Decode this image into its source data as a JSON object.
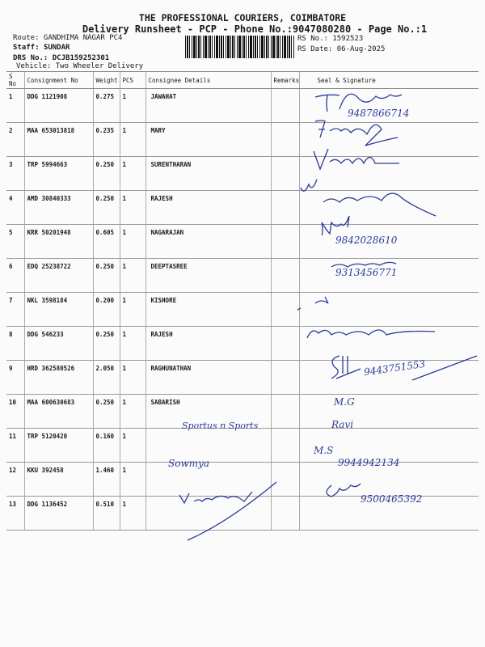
{
  "header": {
    "company": "THE PROFESSIONAL COURIERS, COIMBATORE",
    "subtitle": "Delivery Runsheet - PCP - Phone No.:9047080280 - Page No.:1",
    "route": "Route: GANDHIMA NAGAR PC4",
    "staff": "Staff: SUNDAR",
    "drs": "DRS No.: DCJB159252301",
    "vehicle": "Vehicle: Two Wheeler Delivery",
    "rs_no": "RS No.: 1592523",
    "rs_date": "RS Date: 06-Aug-2025"
  },
  "table": {
    "columns": [
      "S No",
      "Consignment No",
      "Weight",
      "PCS",
      "Consignee Details",
      "Remarks",
      "Seal & Signature"
    ],
    "rows": [
      {
        "sno": "1",
        "cn": "DDG 1121908",
        "wt": "0.275",
        "pcs": "1",
        "name": "JAWAHAT"
      },
      {
        "sno": "2",
        "cn": "MAA 653013818",
        "wt": "0.235",
        "pcs": "1",
        "name": "MARY"
      },
      {
        "sno": "3",
        "cn": "TRP 5994663",
        "wt": "0.250",
        "pcs": "1",
        "name": "SURENTHARAN"
      },
      {
        "sno": "4",
        "cn": "AMD 30840333",
        "wt": "0.250",
        "pcs": "1",
        "name": "RAJESH"
      },
      {
        "sno": "5",
        "cn": "KRR 50201948",
        "wt": "0.605",
        "pcs": "1",
        "name": "NAGARAJAN"
      },
      {
        "sno": "6",
        "cn": "EDQ 25238722",
        "wt": "0.250",
        "pcs": "1",
        "name": "DEEPTASREE"
      },
      {
        "sno": "7",
        "cn": "NKL 3598184",
        "wt": "0.200",
        "pcs": "1",
        "name": "KISHORE"
      },
      {
        "sno": "8",
        "cn": "DDG 546233",
        "wt": "0.250",
        "pcs": "1",
        "name": "RAJESH"
      },
      {
        "sno": "9",
        "cn": "HRD 362580526",
        "wt": "2.050",
        "pcs": "1",
        "name": "RAGHUNATHAN"
      },
      {
        "sno": "10",
        "cn": "MAA 600630683",
        "wt": "0.250",
        "pcs": "1",
        "name": "SABARISH"
      },
      {
        "sno": "11",
        "cn": "TRP 5120420",
        "wt": "0.160",
        "pcs": "1",
        "name": ""
      },
      {
        "sno": "12",
        "cn": "KKU 392458",
        "wt": "1.460",
        "pcs": "1",
        "name": ""
      },
      {
        "sno": "13",
        "cn": "DDG 1136452",
        "wt": "0.510",
        "pcs": "1",
        "name": ""
      }
    ]
  },
  "handwritten": {
    "phone_1": "9487866714",
    "phone_5": "9842028610",
    "phone_6": "9313456771",
    "phone_9": "9443751553",
    "phone_12": "9944942134",
    "phone_13": "9500465392",
    "name_11": "Sportus n Sports",
    "name_12": "Sowmya",
    "sig_10": "M.G",
    "sig_11": "Ravi",
    "sig_12": "M.S"
  },
  "colors": {
    "ink": "#2b3a9a",
    "text": "#1a1a1a"
  }
}
